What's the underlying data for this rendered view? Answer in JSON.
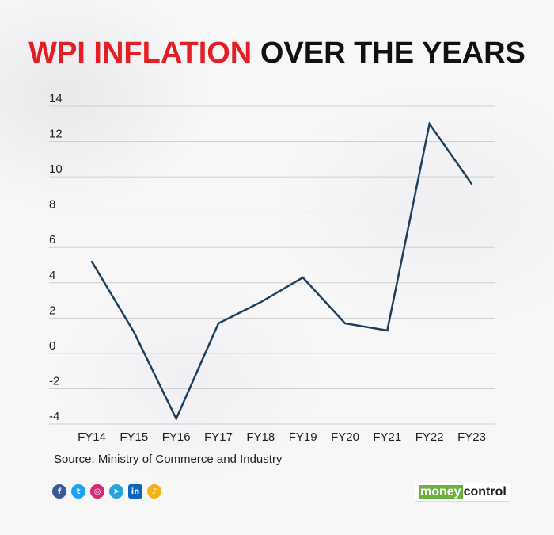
{
  "title_part1": "WPI INFLATION",
  "title_part2": "OVER THE YEARS",
  "source": "Source: Ministry of Commerce and Industry",
  "brand_part1": "money",
  "brand_part2": "control",
  "social_icons": [
    "facebook-icon",
    "twitter-icon",
    "instagram-icon",
    "telegram-icon",
    "linkedin-icon",
    "podcast-icon"
  ],
  "colors": {
    "title_accent": "#e31e24",
    "line": "#1c3f5e",
    "grid": "#cfcfcf",
    "brand_green": "#6bb03f"
  },
  "chart_data": {
    "type": "line",
    "title": "WPI INFLATION OVER THE YEARS",
    "xlabel": "",
    "ylabel": "",
    "categories": [
      "FY14",
      "FY15",
      "FY16",
      "FY17",
      "FY18",
      "FY19",
      "FY20",
      "FY21",
      "FY22",
      "FY23"
    ],
    "series": [
      {
        "values": [
          5.2,
          1.2,
          -3.7,
          1.7,
          2.9,
          4.3,
          1.7,
          1.3,
          13.0,
          9.6
        ]
      }
    ],
    "ylim": [
      -4,
      14
    ],
    "yticks": [
      14,
      12,
      10,
      8,
      6,
      4,
      2,
      0,
      -2,
      -4
    ],
    "grid": true,
    "legend": "none"
  }
}
